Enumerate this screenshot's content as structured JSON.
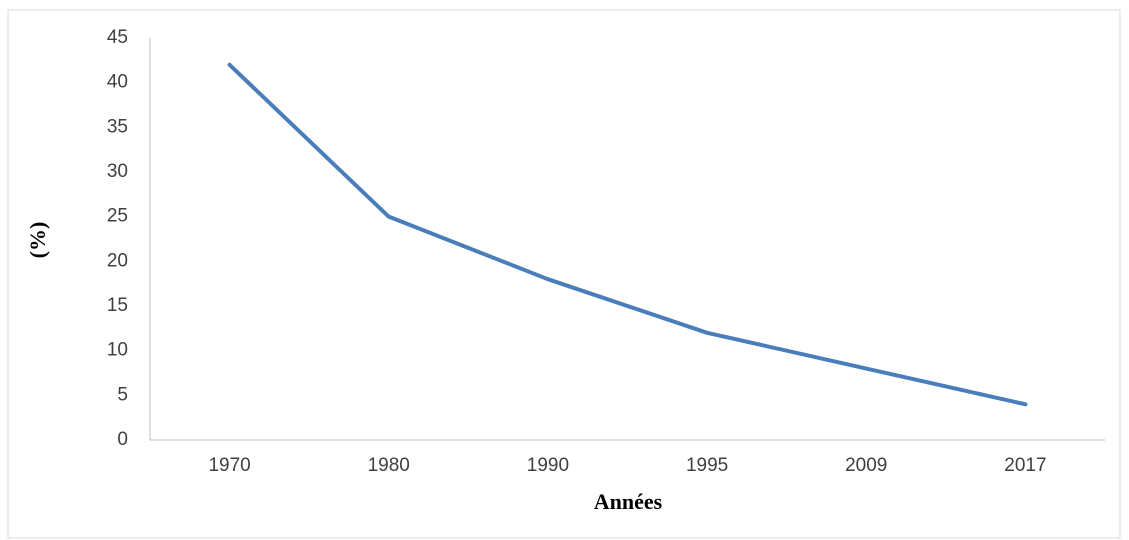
{
  "chart_data": {
    "type": "line",
    "categories": [
      "1970",
      "1980",
      "1990",
      "1995",
      "2009",
      "2017"
    ],
    "values": [
      42,
      25,
      18,
      12,
      8,
      4
    ],
    "color": "#4a7ebb",
    "x_label": "Années",
    "y_label": "(%)",
    "ylim": [
      0,
      45
    ],
    "yticks": [
      0,
      5,
      10,
      15,
      20,
      25,
      30,
      35,
      40,
      45
    ],
    "grid": false
  }
}
